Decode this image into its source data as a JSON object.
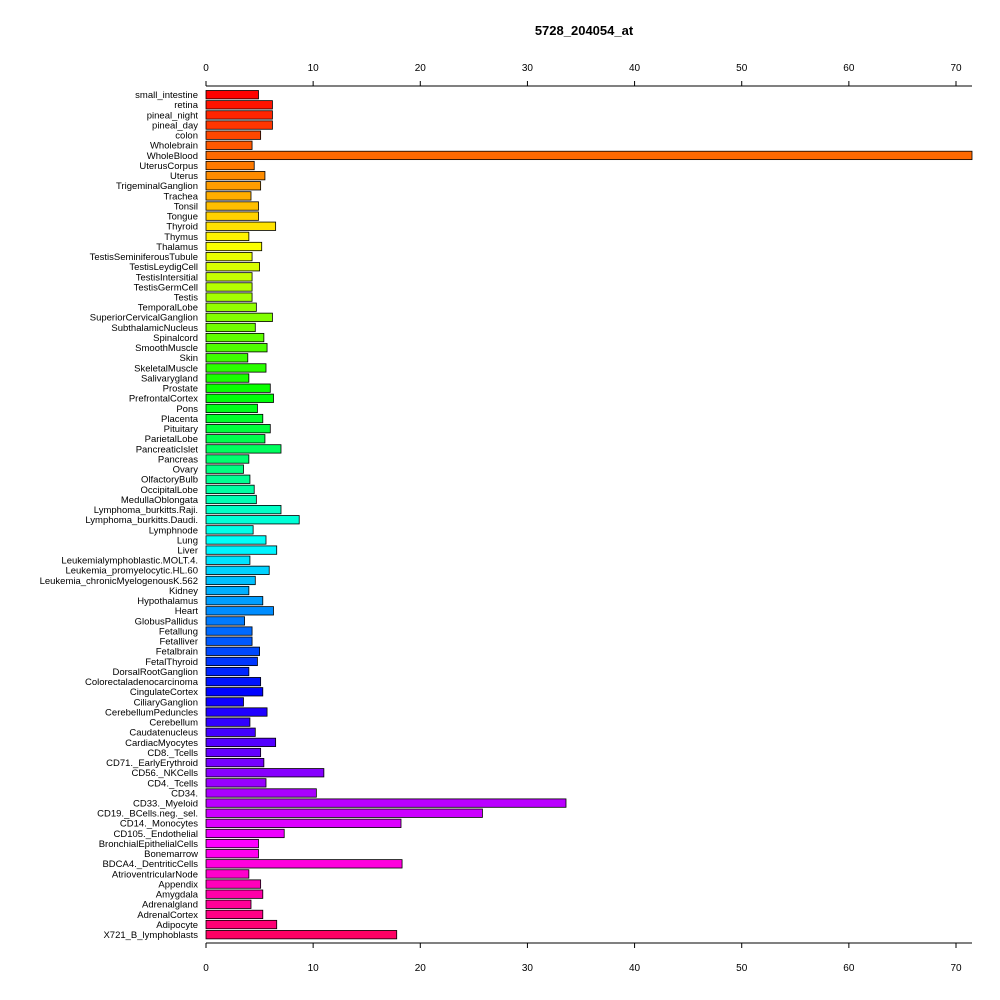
{
  "chart_data": {
    "type": "bar",
    "orientation": "horizontal",
    "title": "5728_204054_at",
    "xlabel": "",
    "ylabel": "",
    "xlim": [
      0,
      70
    ],
    "xticks": [
      0,
      10,
      20,
      30,
      40,
      50,
      60,
      70
    ],
    "grid": false,
    "legend": "none",
    "categories": [
      "small_intestine",
      "retina",
      "pineal_night",
      "pineal_day",
      "colon",
      "Wholebrain",
      "WholeBlood",
      "UterusCorpus",
      "Uterus",
      "TrigeminalGanglion",
      "Trachea",
      "Tonsil",
      "Tongue",
      "Thyroid",
      "Thymus",
      "Thalamus",
      "TestisSeminiferousTubule",
      "TestisLeydigCell",
      "TestisIntersitial",
      "TestisGermCell",
      "Testis",
      "TemporalLobe",
      "SuperiorCervicalGanglion",
      "SubthalamicNucleus",
      "Spinalcord",
      "SmoothMuscle",
      "Skin",
      "SkeletalMuscle",
      "Salivarygland",
      "Prostate",
      "PrefrontalCortex",
      "Pons",
      "Placenta",
      "Pituitary",
      "ParietalLobe",
      "PancreaticIslet",
      "Pancreas",
      "Ovary",
      "OlfactoryBulb",
      "OccipitalLobe",
      "MedullaOblongata",
      "Lymphoma_burkitts.Raji.",
      "Lymphoma_burkitts.Daudi.",
      "Lymphnode",
      "Lung",
      "Liver",
      "Leukemialymphoblastic.MOLT.4.",
      "Leukemia_promyelocytic.HL.60",
      "Leukemia_chronicMyelogenousK.562",
      "Kidney",
      "Hypothalamus",
      "Heart",
      "GlobusPallidus",
      "Fetallung",
      "Fetalliver",
      "Fetalbrain",
      "FetalThyroid",
      "DorsalRootGanglion",
      "Colorectaladenocarcinoma",
      "CingulateCortex",
      "CiliaryGanglion",
      "CerebellumPeduncles",
      "Cerebellum",
      "Caudatenucleus",
      "CardiacMyocytes",
      "CD8._Tcells",
      "CD71._EarlyErythroid",
      "CD56._NKCells",
      "CD4._Tcells",
      "CD34.",
      "CD33._Myeloid",
      "CD19._BCells.neg._sel.",
      "CD14._Monocytes",
      "CD105._Endothelial",
      "BronchialEpithelialCells",
      "Bonemarrow",
      "BDCA4._DentriticCells",
      "AtrioventricularNode",
      "Appendix",
      "Amygdala",
      "Adrenalgland",
      "AdrenalCortex",
      "Adipocyte",
      "X721_B_lymphoblasts"
    ],
    "values": [
      4.9,
      6.2,
      6.2,
      6.2,
      5.1,
      4.3,
      71.5,
      4.5,
      5.5,
      5.1,
      4.2,
      4.9,
      4.9,
      6.5,
      4.0,
      5.2,
      4.3,
      5.0,
      4.3,
      4.3,
      4.3,
      4.7,
      6.2,
      4.6,
      5.4,
      5.7,
      3.9,
      5.6,
      4.0,
      6.0,
      6.3,
      4.8,
      5.3,
      6.0,
      5.5,
      7.0,
      4.0,
      3.5,
      4.1,
      4.5,
      4.7,
      7.0,
      8.7,
      4.4,
      5.6,
      6.6,
      4.1,
      5.9,
      4.6,
      4.0,
      5.3,
      6.3,
      3.6,
      4.3,
      4.3,
      5.0,
      4.8,
      4.0,
      5.1,
      5.3,
      3.5,
      5.7,
      4.1,
      4.6,
      6.5,
      5.1,
      5.4,
      11.0,
      5.6,
      10.3,
      33.6,
      25.8,
      18.2,
      7.3,
      4.9,
      4.9,
      18.3,
      4.0,
      5.1,
      5.3,
      4.2,
      5.3,
      6.6,
      17.8
    ]
  }
}
